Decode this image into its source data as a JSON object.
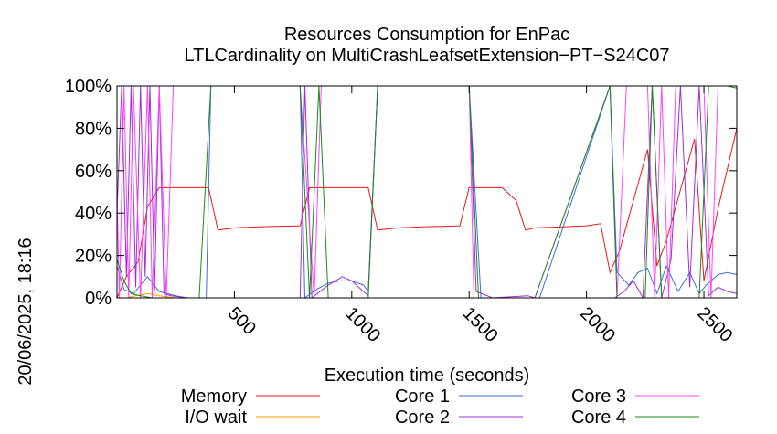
{
  "side_label": "20/06/2025, 18:16",
  "chart_data": {
    "type": "line",
    "title": "Resources Consumption for EnPac",
    "subtitle": "LTLCardinality on MultiCrashLeafsetExtension−PT−S24C07",
    "xlabel": "Execution time (seconds)",
    "ylabel": "",
    "xlim": [
      0,
      2640
    ],
    "ylim": [
      0,
      100
    ],
    "x_ticks": [
      500,
      1000,
      1500,
      2000,
      2500
    ],
    "y_ticks": [
      0,
      20,
      40,
      60,
      80,
      100
    ],
    "y_tick_labels": [
      "0%",
      "20%",
      "40%",
      "60%",
      "80%",
      "100%"
    ],
    "grid": false,
    "legend_position": "bottom",
    "series": [
      {
        "name": "Memory",
        "color": "#e41a1c",
        "x": [
          0,
          40,
          90,
          130,
          180,
          300,
          390,
          430,
          500,
          600,
          700,
          780,
          820,
          900,
          1000,
          1070,
          1110,
          1200,
          1300,
          1400,
          1460,
          1500,
          1600,
          1640,
          1700,
          1740,
          1780,
          1900,
          2000,
          2060,
          2100,
          2140,
          2200,
          2260,
          2300,
          2340,
          2400,
          2460,
          2500,
          2560,
          2640
        ],
        "y": [
          0,
          10,
          17,
          43,
          52,
          52,
          52,
          32,
          33,
          33.5,
          33.8,
          34,
          52,
          52,
          52,
          52,
          32,
          33,
          33.5,
          33.8,
          34,
          52,
          52,
          52,
          46,
          32,
          33,
          33.5,
          34,
          35,
          12,
          22,
          46,
          70,
          15,
          27,
          51,
          75,
          8,
          42,
          80
        ]
      },
      {
        "name": "I/O wait",
        "color": "#ff9f00",
        "x": [
          0,
          40,
          80,
          130,
          180,
          250,
          2640
        ],
        "y": [
          0,
          0,
          1,
          2,
          1,
          0,
          0
        ]
      },
      {
        "name": "Core 1",
        "color": "#3b6fd1",
        "x": [
          0,
          30,
          70,
          130,
          180,
          250,
          300,
          380,
          400,
          780,
          800,
          850,
          900,
          950,
          1000,
          1050,
          1070,
          1110,
          1500,
          1550,
          1800,
          2100,
          2130,
          2180,
          2220,
          2260,
          2300,
          2340,
          2390,
          2440,
          2480,
          2510,
          2560,
          2600,
          2640
        ],
        "y": [
          15,
          4,
          2,
          10,
          3,
          1,
          0,
          0,
          100,
          100,
          0,
          4,
          7,
          8,
          8,
          6,
          3,
          100,
          100,
          0,
          0,
          100,
          12,
          6,
          12,
          14,
          2,
          15,
          3,
          12,
          2,
          6,
          11,
          12,
          11
        ]
      },
      {
        "name": "Core 2",
        "color": "#9b30d9",
        "x": [
          0,
          20,
          40,
          60,
          80,
          100,
          120,
          140,
          160,
          180,
          200,
          230,
          300,
          780,
          800,
          830,
          900,
          960,
          1000,
          1040,
          1070,
          1110,
          1500,
          1530,
          1600,
          1750,
          1780,
          2100,
          2120,
          2160,
          2200,
          2240,
          2280,
          2320,
          2360,
          2400,
          2440,
          2480,
          2520,
          2560,
          2600,
          2640
        ],
        "y": [
          40,
          100,
          10,
          100,
          5,
          100,
          10,
          100,
          3,
          100,
          2,
          1,
          0,
          0,
          100,
          0,
          6,
          10,
          8,
          4,
          1,
          100,
          100,
          3,
          0,
          1,
          0,
          0,
          0,
          3,
          8,
          0,
          100,
          0,
          18,
          100,
          5,
          100,
          1,
          5,
          3,
          2
        ]
      },
      {
        "name": "Core 3",
        "color": "#ff44ff",
        "x": [
          0,
          10,
          30,
          50,
          70,
          100,
          130,
          150,
          180,
          210,
          240,
          390,
          780,
          840,
          870,
          1110,
          1500,
          1520,
          1540,
          1780,
          2100,
          2130,
          2170,
          2200,
          2230,
          2260,
          2290,
          2320,
          2350,
          2380,
          2410,
          2440,
          2470,
          2500,
          2530,
          2560,
          2600,
          2640
        ],
        "y": [
          50,
          0,
          100,
          0,
          100,
          0,
          100,
          0,
          100,
          0,
          100,
          100,
          100,
          0,
          100,
          100,
          100,
          0,
          0,
          0,
          100,
          0,
          100,
          100,
          100,
          100,
          0,
          100,
          0,
          100,
          100,
          100,
          100,
          100,
          0,
          100,
          100,
          100
        ]
      },
      {
        "name": "Core 4",
        "color": "#1a8a1a",
        "x": [
          0,
          30,
          60,
          100,
          150,
          200,
          250,
          300,
          350,
          400,
          780,
          820,
          860,
          900,
          940,
          1000,
          1070,
          1110,
          1500,
          1540,
          1780,
          2100,
          2130,
          2170,
          2210,
          2250,
          2280,
          2320,
          2360,
          2400,
          2440,
          2480,
          2520,
          2600,
          2640
        ],
        "y": [
          18,
          8,
          2,
          1,
          0,
          0,
          0,
          0,
          0,
          100,
          100,
          0,
          100,
          0,
          0,
          0,
          0,
          100,
          100,
          0,
          0,
          100,
          0,
          0,
          0,
          0,
          100,
          0,
          0,
          0,
          0,
          0,
          100,
          100,
          99
        ]
      }
    ]
  }
}
